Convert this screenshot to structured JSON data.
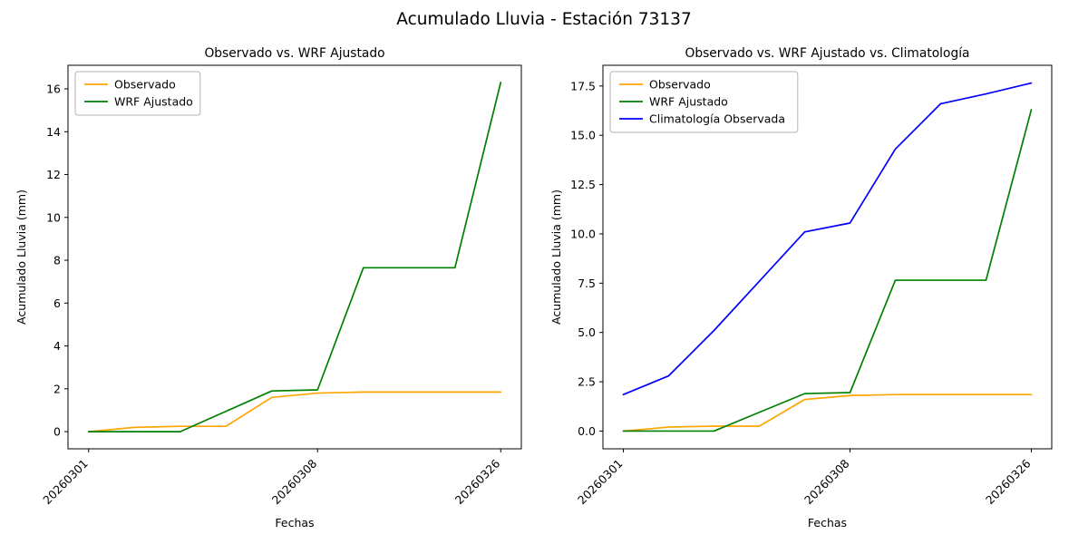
{
  "figure": {
    "title": "Acumulado Lluvia - Estación 73137",
    "background": "#ffffff"
  },
  "chart_data": [
    {
      "type": "line",
      "title": "Observado vs. WRF Ajustado",
      "xlabel": "Fechas",
      "ylabel": "Acumulado Lluvia (mm)",
      "n_points": 10,
      "x_tick_indices": [
        0,
        5,
        9
      ],
      "x_tick_labels": [
        "20260301",
        "20260308",
        "20260326"
      ],
      "ylim": [
        -0.8,
        17.1
      ],
      "yticks": {
        "values": [
          0,
          2,
          4,
          6,
          8,
          10,
          12,
          14,
          16
        ],
        "labels": [
          "0",
          "2",
          "4",
          "6",
          "8",
          "10",
          "12",
          "14",
          "16"
        ]
      },
      "grid": false,
      "legend_position": "upper-left",
      "series": [
        {
          "name": "Observado",
          "color": "#FFA500",
          "values": [
            0,
            0.2,
            0.25,
            0.25,
            1.6,
            1.8,
            1.85,
            1.85,
            1.85,
            1.85
          ]
        },
        {
          "name": "WRF Ajustado",
          "color": "#008000",
          "values": [
            0,
            0,
            0,
            0.95,
            1.9,
            1.95,
            7.65,
            7.65,
            7.65,
            16.3
          ]
        }
      ]
    },
    {
      "type": "line",
      "title": "Observado vs. WRF Ajustado vs. Climatología",
      "xlabel": "Fechas",
      "ylabel": "Acumulado Lluvia (mm)",
      "n_points": 10,
      "x_tick_indices": [
        0,
        5,
        9
      ],
      "x_tick_labels": [
        "20260301",
        "20260308",
        "20260326"
      ],
      "ylim": [
        -0.9,
        18.55
      ],
      "yticks": {
        "values": [
          0,
          2.5,
          5,
          7.5,
          10,
          12.5,
          15,
          17.5
        ],
        "labels": [
          "0.0",
          "2.5",
          "5.0",
          "7.5",
          "10.0",
          "12.5",
          "15.0",
          "17.5"
        ]
      },
      "grid": false,
      "legend_position": "upper-left",
      "series": [
        {
          "name": "Observado",
          "color": "#FFA500",
          "values": [
            0,
            0.2,
            0.25,
            0.25,
            1.6,
            1.8,
            1.85,
            1.85,
            1.85,
            1.85
          ]
        },
        {
          "name": "WRF Ajustado",
          "color": "#008000",
          "values": [
            0,
            0,
            0,
            0.95,
            1.9,
            1.95,
            7.65,
            7.65,
            7.65,
            16.3
          ]
        },
        {
          "name": "Climatología Observada",
          "color": "#0000FF",
          "values": [
            1.85,
            2.8,
            5.1,
            7.6,
            10.1,
            10.55,
            14.3,
            16.6,
            17.1,
            17.65
          ]
        }
      ]
    }
  ]
}
